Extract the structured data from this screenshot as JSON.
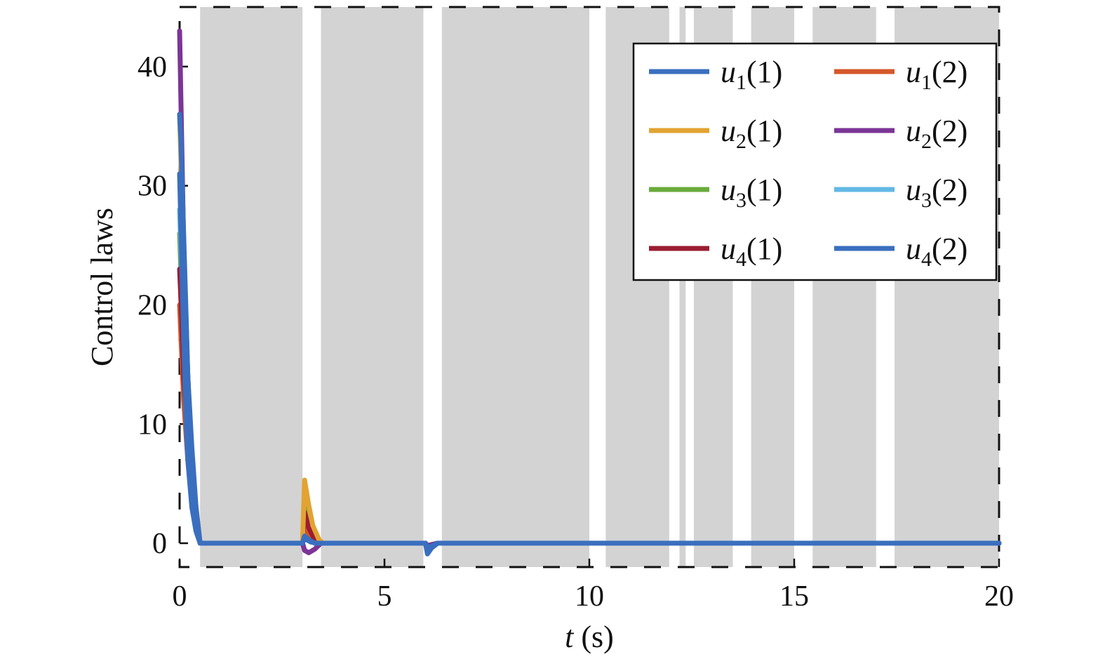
{
  "chart_data": {
    "type": "line",
    "xlabel": {
      "var": "t",
      "unit": " (s)"
    },
    "ylabel": "Control laws",
    "xlim": [
      0,
      20
    ],
    "ylim": [
      -2,
      45
    ],
    "xticks": [
      0,
      5,
      10,
      15,
      20
    ],
    "yticks": [
      0,
      10,
      20,
      30,
      40
    ],
    "grid": false,
    "legend_position": "top-right",
    "shaded_intervals": [
      [
        0.5,
        3.0
      ],
      [
        3.45,
        5.95
      ],
      [
        6.4,
        10.0
      ],
      [
        10.4,
        11.95
      ],
      [
        12.2,
        12.35
      ],
      [
        12.55,
        13.5
      ],
      [
        13.95,
        15.0
      ],
      [
        15.45,
        17.0
      ],
      [
        17.45,
        20.0
      ]
    ],
    "series": [
      {
        "name": "u1(1)",
        "base": "u",
        "sub": "1",
        "idx": "(1)",
        "color": "#3a6fbf",
        "points": [
          [
            0,
            31
          ],
          [
            0.05,
            24
          ],
          [
            0.1,
            17
          ],
          [
            0.15,
            11
          ],
          [
            0.2,
            7
          ],
          [
            0.3,
            3
          ],
          [
            0.4,
            1
          ],
          [
            0.5,
            0
          ],
          [
            3.0,
            0
          ],
          [
            3.05,
            0.6
          ],
          [
            3.15,
            0.3
          ],
          [
            3.3,
            0
          ],
          [
            6.0,
            0
          ],
          [
            6.05,
            -0.4
          ],
          [
            6.3,
            0
          ],
          [
            20,
            0
          ]
        ]
      },
      {
        "name": "u1(2)",
        "base": "u",
        "sub": "1",
        "idx": "(2)",
        "color": "#d4572a",
        "points": [
          [
            0,
            20
          ],
          [
            0.05,
            16
          ],
          [
            0.1,
            12
          ],
          [
            0.2,
            7
          ],
          [
            0.3,
            3.5
          ],
          [
            0.4,
            1.5
          ],
          [
            0.5,
            0
          ],
          [
            3.0,
            0
          ],
          [
            3.05,
            1.5
          ],
          [
            3.15,
            0.8
          ],
          [
            3.3,
            0
          ],
          [
            6.0,
            0
          ],
          [
            6.05,
            -0.2
          ],
          [
            6.3,
            0
          ],
          [
            20,
            0
          ]
        ]
      },
      {
        "name": "u2(1)",
        "base": "u",
        "sub": "2",
        "idx": "(1)",
        "color": "#e2a332",
        "points": [
          [
            0,
            36
          ],
          [
            0.05,
            30
          ],
          [
            0.1,
            23
          ],
          [
            0.2,
            14
          ],
          [
            0.3,
            7
          ],
          [
            0.4,
            3
          ],
          [
            0.5,
            0
          ],
          [
            3.0,
            0
          ],
          [
            3.05,
            5.3
          ],
          [
            3.15,
            3.2
          ],
          [
            3.25,
            1.5
          ],
          [
            3.4,
            0.3
          ],
          [
            3.5,
            0
          ],
          [
            6.0,
            0
          ],
          [
            6.05,
            -0.3
          ],
          [
            6.3,
            0
          ],
          [
            20,
            0
          ]
        ]
      },
      {
        "name": "u2(2)",
        "base": "u",
        "sub": "2",
        "idx": "(2)",
        "color": "#7b3596",
        "points": [
          [
            0,
            43
          ],
          [
            0.05,
            34
          ],
          [
            0.1,
            25
          ],
          [
            0.2,
            14
          ],
          [
            0.3,
            6
          ],
          [
            0.4,
            2.5
          ],
          [
            0.5,
            0
          ],
          [
            3.0,
            0
          ],
          [
            3.05,
            -0.6
          ],
          [
            3.15,
            -0.8
          ],
          [
            3.3,
            -0.5
          ],
          [
            3.45,
            0
          ],
          [
            6.0,
            0
          ],
          [
            6.05,
            -0.2
          ],
          [
            6.3,
            0
          ],
          [
            20,
            0
          ]
        ]
      },
      {
        "name": "u3(1)",
        "base": "u",
        "sub": "3",
        "idx": "(1)",
        "color": "#6aaa3a",
        "points": [
          [
            0,
            26
          ],
          [
            0.05,
            21
          ],
          [
            0.1,
            16
          ],
          [
            0.2,
            10
          ],
          [
            0.3,
            6
          ],
          [
            0.4,
            3
          ],
          [
            0.5,
            0
          ],
          [
            3.0,
            0
          ],
          [
            3.05,
            3
          ],
          [
            3.15,
            2
          ],
          [
            3.3,
            0.8
          ],
          [
            3.45,
            0
          ],
          [
            6.0,
            0
          ],
          [
            6.05,
            -0.2
          ],
          [
            6.3,
            0
          ],
          [
            20,
            0
          ]
        ]
      },
      {
        "name": "u3(2)",
        "base": "u",
        "sub": "3",
        "idx": "(2)",
        "color": "#62b8e4",
        "points": [
          [
            0,
            28
          ],
          [
            0.05,
            23
          ],
          [
            0.1,
            17
          ],
          [
            0.2,
            11
          ],
          [
            0.3,
            6
          ],
          [
            0.4,
            2.5
          ],
          [
            0.5,
            0
          ],
          [
            3.0,
            0
          ],
          [
            3.05,
            2.6
          ],
          [
            3.15,
            1.5
          ],
          [
            3.3,
            0.5
          ],
          [
            3.45,
            0
          ],
          [
            6.0,
            0
          ],
          [
            6.05,
            -0.3
          ],
          [
            6.3,
            0
          ],
          [
            20,
            0
          ]
        ]
      },
      {
        "name": "u4(1)",
        "base": "u",
        "sub": "4",
        "idx": "(1)",
        "color": "#9b1d32",
        "points": [
          [
            0,
            23
          ],
          [
            0.05,
            19
          ],
          [
            0.1,
            14
          ],
          [
            0.2,
            9
          ],
          [
            0.3,
            5
          ],
          [
            0.4,
            2
          ],
          [
            0.5,
            0
          ],
          [
            3.0,
            0
          ],
          [
            3.05,
            2.6
          ],
          [
            3.15,
            1.3
          ],
          [
            3.3,
            0.3
          ],
          [
            3.4,
            0
          ],
          [
            6.0,
            0
          ],
          [
            6.05,
            -0.6
          ],
          [
            6.15,
            -0.2
          ],
          [
            6.3,
            0
          ],
          [
            20,
            0
          ]
        ]
      },
      {
        "name": "u4(2)",
        "base": "u",
        "sub": "4",
        "idx": "(2)",
        "color": "#3a6fbf",
        "points": [
          [
            0,
            36
          ],
          [
            0.03,
            34
          ],
          [
            0.08,
            28
          ],
          [
            0.15,
            20
          ],
          [
            0.2,
            14
          ],
          [
            0.3,
            8
          ],
          [
            0.4,
            3
          ],
          [
            0.5,
            0
          ],
          [
            3.0,
            0
          ],
          [
            3.05,
            0.4
          ],
          [
            3.2,
            0.1
          ],
          [
            3.35,
            0
          ],
          [
            6.0,
            0
          ],
          [
            6.05,
            -0.9
          ],
          [
            6.15,
            -0.4
          ],
          [
            6.3,
            0
          ],
          [
            20,
            0
          ]
        ]
      }
    ]
  }
}
